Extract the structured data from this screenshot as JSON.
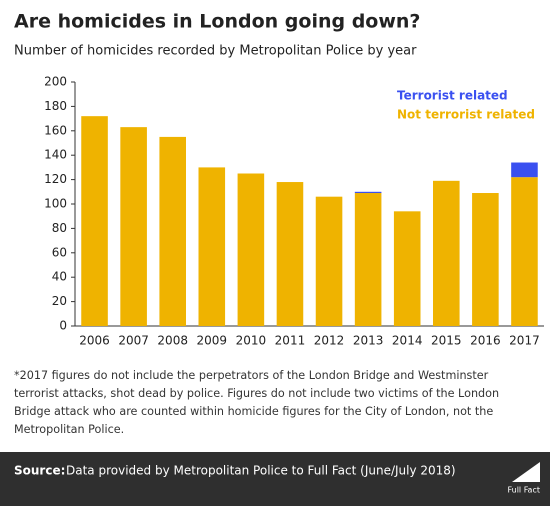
{
  "chart_data": {
    "type": "stacked_bar",
    "title": "Are homicides in London going down?",
    "subtitle": "Number of homicides recorded by Metropolitan Police by year",
    "categories": [
      "2006",
      "2007",
      "2008",
      "2009",
      "2010",
      "2011",
      "2012",
      "2013",
      "2014",
      "2015",
      "2016",
      "2017"
    ],
    "series": [
      {
        "name": "Not terrorist related",
        "color": "#efb300",
        "values": [
          172,
          163,
          155,
          130,
          125,
          118,
          106,
          109,
          94,
          119,
          109,
          122
        ]
      },
      {
        "name": "Terrorist related",
        "color": "#3a50f0",
        "values": [
          0,
          0,
          0,
          0,
          0,
          0,
          0,
          1,
          0,
          0,
          0,
          12
        ]
      }
    ],
    "ylim": [
      0,
      200
    ],
    "yticks": [
      0,
      20,
      40,
      60,
      80,
      100,
      120,
      140,
      160,
      180,
      200
    ],
    "grid": false,
    "notes": [
      "*2017 figures do not include the perpetrators of the London Bridge and Westminster",
      "terrorist attacks, shot dead by police. Figures do not include two victims of the London",
      "Bridge attack who are counted within homicide figures for the City of London, not the",
      "Metropolitan Police."
    ],
    "source_label": "Source:",
    "source_text": "Data provided by Metropolitan Police to Full Fact (June/July 2018)",
    "logo": "Full Fact"
  }
}
